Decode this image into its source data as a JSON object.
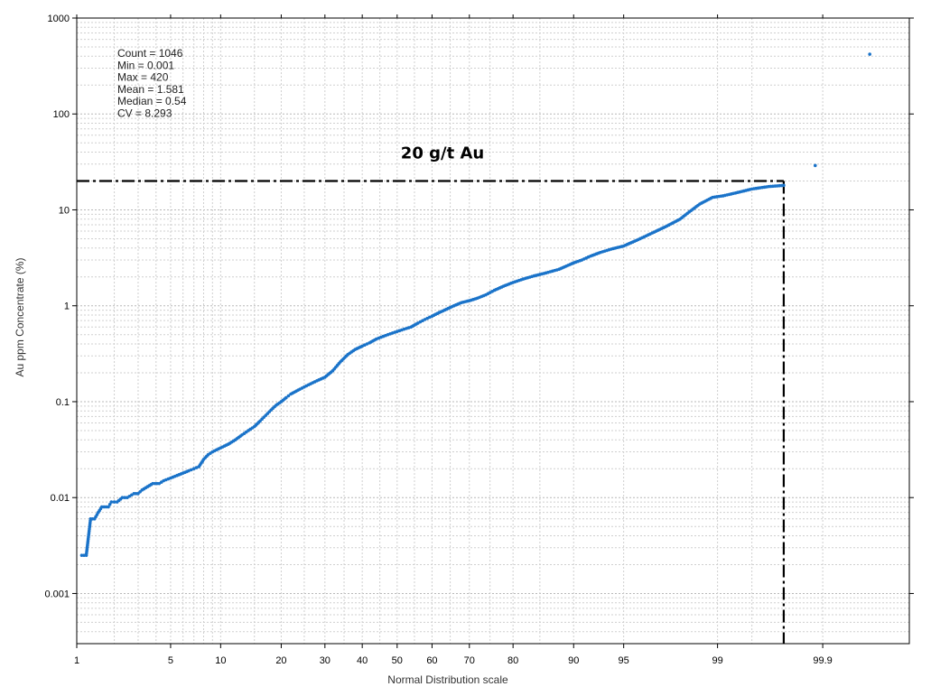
{
  "chart_data": {
    "type": "scatter",
    "title": "",
    "xlabel": "Normal Distribution scale",
    "ylabel": "Au ppm Concentrate (%)",
    "x_scale": "normal-probability",
    "y_scale": "log",
    "xlim": [
      1,
      99.99
    ],
    "ylim": [
      0.0003,
      1000
    ],
    "grid": true,
    "x_ticks": [
      1,
      5,
      10,
      20,
      30,
      40,
      50,
      60,
      70,
      80,
      90,
      95,
      99,
      99.9
    ],
    "x_tick_labels": [
      "1",
      "5",
      "10",
      "20",
      "30",
      "40",
      "50",
      "60",
      "70",
      "80",
      "90",
      "95",
      "99",
      "99.9"
    ],
    "y_ticks": [
      0.001,
      0.01,
      0.1,
      1,
      10,
      100,
      1000
    ],
    "y_tick_labels": [
      "0.001",
      "0.01",
      "0.1",
      "1",
      "10",
      "100",
      "1000"
    ],
    "stats": [
      {
        "label": "Count =",
        "value": "1046"
      },
      {
        "label": "Min =",
        "value": "0.001"
      },
      {
        "label": "Max =",
        "value": "420"
      },
      {
        "label": "Mean =",
        "value": "1.581"
      },
      {
        "label": "Median =",
        "value": "0.54"
      },
      {
        "label": "CV =",
        "value": "8.293"
      }
    ],
    "annotation": {
      "text": "20 g/t Au",
      "y_value": 20,
      "x_value": 99.75,
      "line_style": "dash-dot"
    },
    "series": [
      {
        "color": "#1a73c9",
        "points": [
          [
            1.1,
            0.0025
          ],
          [
            1.2,
            0.0025
          ],
          [
            1.3,
            0.006
          ],
          [
            1.4,
            0.006
          ],
          [
            1.5,
            0.007
          ],
          [
            1.6,
            0.008
          ],
          [
            1.8,
            0.008
          ],
          [
            1.9,
            0.009
          ],
          [
            2.1,
            0.009
          ],
          [
            2.3,
            0.01
          ],
          [
            2.5,
            0.01
          ],
          [
            2.8,
            0.011
          ],
          [
            3.0,
            0.011
          ],
          [
            3.2,
            0.012
          ],
          [
            3.5,
            0.013
          ],
          [
            3.8,
            0.014
          ],
          [
            4.2,
            0.014
          ],
          [
            4.5,
            0.015
          ],
          [
            5,
            0.016
          ],
          [
            5.5,
            0.017
          ],
          [
            6,
            0.018
          ],
          [
            6.5,
            0.019
          ],
          [
            7,
            0.02
          ],
          [
            7.5,
            0.021
          ],
          [
            8,
            0.025
          ],
          [
            8.5,
            0.028
          ],
          [
            9,
            0.03
          ],
          [
            10,
            0.033
          ],
          [
            11,
            0.036
          ],
          [
            12,
            0.04
          ],
          [
            13,
            0.045
          ],
          [
            14,
            0.05
          ],
          [
            15,
            0.055
          ],
          [
            16,
            0.063
          ],
          [
            17,
            0.072
          ],
          [
            18,
            0.082
          ],
          [
            19,
            0.092
          ],
          [
            20,
            0.1
          ],
          [
            21,
            0.11
          ],
          [
            22,
            0.12
          ],
          [
            24,
            0.135
          ],
          [
            26,
            0.15
          ],
          [
            28,
            0.165
          ],
          [
            30,
            0.18
          ],
          [
            32,
            0.21
          ],
          [
            34,
            0.26
          ],
          [
            36,
            0.31
          ],
          [
            38,
            0.35
          ],
          [
            40,
            0.38
          ],
          [
            42,
            0.41
          ],
          [
            44,
            0.45
          ],
          [
            46,
            0.48
          ],
          [
            48,
            0.51
          ],
          [
            50,
            0.54
          ],
          [
            52,
            0.57
          ],
          [
            54,
            0.6
          ],
          [
            56,
            0.66
          ],
          [
            58,
            0.72
          ],
          [
            60,
            0.78
          ],
          [
            62,
            0.85
          ],
          [
            64,
            0.92
          ],
          [
            66,
            1.0
          ],
          [
            68,
            1.08
          ],
          [
            70,
            1.13
          ],
          [
            72,
            1.2
          ],
          [
            74,
            1.3
          ],
          [
            76,
            1.45
          ],
          [
            78,
            1.6
          ],
          [
            80,
            1.75
          ],
          [
            82,
            1.9
          ],
          [
            84,
            2.05
          ],
          [
            86,
            2.2
          ],
          [
            88,
            2.4
          ],
          [
            90,
            2.8
          ],
          [
            91,
            3.0
          ],
          [
            92,
            3.3
          ],
          [
            93,
            3.6
          ],
          [
            94,
            3.9
          ],
          [
            95,
            4.2
          ],
          [
            96,
            4.9
          ],
          [
            97,
            6.0
          ],
          [
            97.5,
            6.8
          ],
          [
            98,
            8.0
          ],
          [
            98.3,
            9.5
          ],
          [
            98.6,
            11.5
          ],
          [
            98.9,
            13.5
          ],
          [
            99.1,
            14
          ],
          [
            99.3,
            15
          ],
          [
            99.5,
            16.5
          ],
          [
            99.65,
            17.5
          ],
          [
            99.75,
            18
          ],
          [
            99.88,
            29
          ],
          [
            99.97,
            420
          ]
        ]
      }
    ]
  }
}
